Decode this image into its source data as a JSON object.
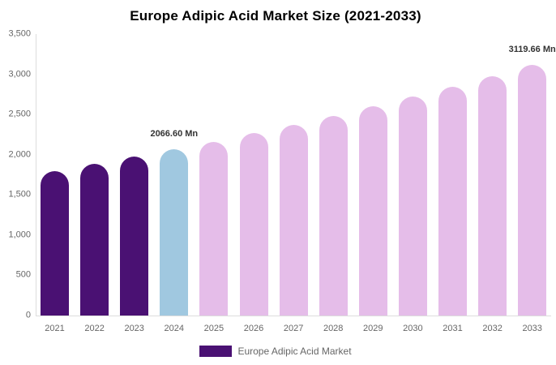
{
  "chart_data": {
    "type": "bar",
    "title": "Europe Adipic Acid Market Size (2021-2033)",
    "unit": "Mn",
    "categories": [
      "2021",
      "2022",
      "2023",
      "2024",
      "2025",
      "2026",
      "2027",
      "2028",
      "2029",
      "2030",
      "2031",
      "2032",
      "2033"
    ],
    "values": [
      1800,
      1886,
      1974,
      2066.6,
      2163,
      2265,
      2371,
      2482,
      2598,
      2720,
      2847,
      2980,
      3119.66
    ],
    "xlabel": "",
    "ylabel": "",
    "ylim": [
      0,
      3500
    ],
    "yticks": [
      {
        "value": 0,
        "label": "0"
      },
      {
        "value": 500,
        "label": "500"
      },
      {
        "value": 1000,
        "label": "1,000"
      },
      {
        "value": 1500,
        "label": "1,500"
      },
      {
        "value": 2000,
        "label": "2,000"
      },
      {
        "value": 2500,
        "label": "2,500"
      },
      {
        "value": 3000,
        "label": "3,000"
      },
      {
        "value": 3500,
        "label": "3,500"
      }
    ],
    "grid": "off",
    "legend_position": "bottom",
    "bar_colors": [
      "#4A1173",
      "#4A1173",
      "#4A1173",
      "#A0C8E0",
      "#E5BDE9",
      "#E5BDE9",
      "#E5BDE9",
      "#E5BDE9",
      "#E5BDE9",
      "#E5BDE9",
      "#E5BDE9",
      "#E5BDE9",
      "#E5BDE9"
    ],
    "data_labels": [
      {
        "index": 3,
        "category": "2024",
        "text": "2066.60 Mn"
      },
      {
        "index": 12,
        "category": "2033",
        "text": "3119.66 Mn"
      }
    ]
  },
  "legend": {
    "label": "Europe Adipic Acid Market",
    "swatch_color": "#4A1173"
  },
  "colors": {
    "historical_bar": "#4A1173",
    "base_year_bar": "#A0C8E0",
    "forecast_bar": "#E5BDE9",
    "axis_line": "#DDDDDD",
    "axis_text": "#666666",
    "data_label_text": "#333333",
    "title_text": "#000000"
  }
}
